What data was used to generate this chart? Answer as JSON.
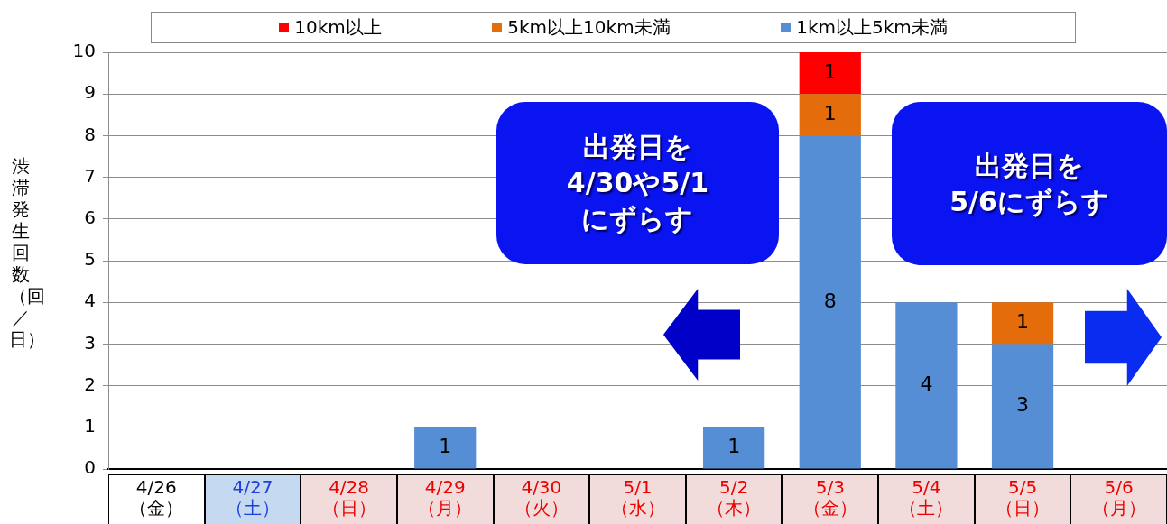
{
  "chart_data": {
    "type": "bar",
    "stacked": true,
    "ylabel": "渋滞発生回数（回／日）",
    "categories": [
      "4/26\n（金）",
      "4/27\n（土）",
      "4/28\n（日）",
      "4/29\n（月）",
      "4/30\n（火）",
      "5/1\n（水）",
      "5/2\n（木）",
      "5/3\n（金）",
      "5/4\n（土）",
      "5/5\n（日）",
      "5/6\n（月）"
    ],
    "series": [
      {
        "name": "1km以上5km未満",
        "color": "#558ed5",
        "values": [
          null,
          null,
          null,
          1,
          null,
          null,
          1,
          8,
          4,
          3,
          null
        ]
      },
      {
        "name": "5km以上10km未満",
        "color": "#e46c0a",
        "values": [
          null,
          null,
          null,
          null,
          null,
          null,
          null,
          1,
          null,
          1,
          null
        ]
      },
      {
        "name": "10km以上",
        "color": "#ff0000",
        "values": [
          null,
          null,
          null,
          null,
          null,
          null,
          null,
          1,
          null,
          null,
          null
        ]
      }
    ],
    "ylim": [
      0,
      10
    ],
    "yticks": [
      0,
      1,
      2,
      3,
      4,
      5,
      6,
      7,
      8,
      9,
      10
    ],
    "grid": "y",
    "legend": "top",
    "data_labels": true,
    "annotations": [
      "出発日を\n4/30や5/1\nにずらす",
      "出発日を\n5/6にずらす"
    ]
  }
}
